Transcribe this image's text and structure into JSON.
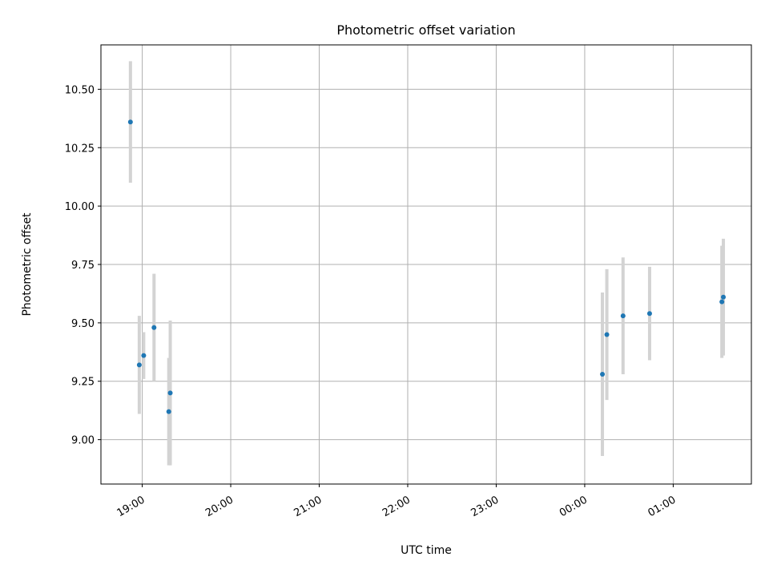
{
  "chart_data": {
    "type": "scatter",
    "title": "Photometric offset variation",
    "xlabel": "UTC time",
    "ylabel": "Photometric offset",
    "x_axis_kind": "time",
    "xlim": [
      "18:32",
      "01:53"
    ],
    "ylim": [
      8.81,
      10.69
    ],
    "x_ticks": [
      "19:00",
      "20:00",
      "21:00",
      "22:00",
      "23:00",
      "00:00",
      "01:00"
    ],
    "y_ticks": [
      9.0,
      9.25,
      9.5,
      9.75,
      10.0,
      10.25,
      10.5
    ],
    "y_tick_labels": [
      "9.00",
      "9.25",
      "9.50",
      "9.75",
      "10.00",
      "10.25",
      "10.50"
    ],
    "grid": true,
    "colors": {
      "point": "#1f77b4",
      "errorbar": "#d3d3d3",
      "grid": "#b0b0b0"
    },
    "points": [
      {
        "x": "18:52",
        "y": 10.36,
        "yerr": 0.26
      },
      {
        "x": "18:58",
        "y": 9.32,
        "yerr": 0.21
      },
      {
        "x": "19:01",
        "y": 9.36,
        "yerr": 0.1
      },
      {
        "x": "19:08",
        "y": 9.48,
        "yerr": 0.23
      },
      {
        "x": "19:19",
        "y": 9.2,
        "yerr": 0.31
      },
      {
        "x": "19:18",
        "y": 9.12,
        "yerr": 0.23
      },
      {
        "x": "00:12",
        "y": 9.28,
        "yerr": 0.35
      },
      {
        "x": "00:15",
        "y": 9.45,
        "yerr": 0.28
      },
      {
        "x": "00:26",
        "y": 9.53,
        "yerr": 0.25
      },
      {
        "x": "00:44",
        "y": 9.54,
        "yerr": 0.2
      },
      {
        "x": "01:33",
        "y": 9.59,
        "yerr": 0.24
      },
      {
        "x": "01:34",
        "y": 9.61,
        "yerr": 0.25
      }
    ]
  }
}
